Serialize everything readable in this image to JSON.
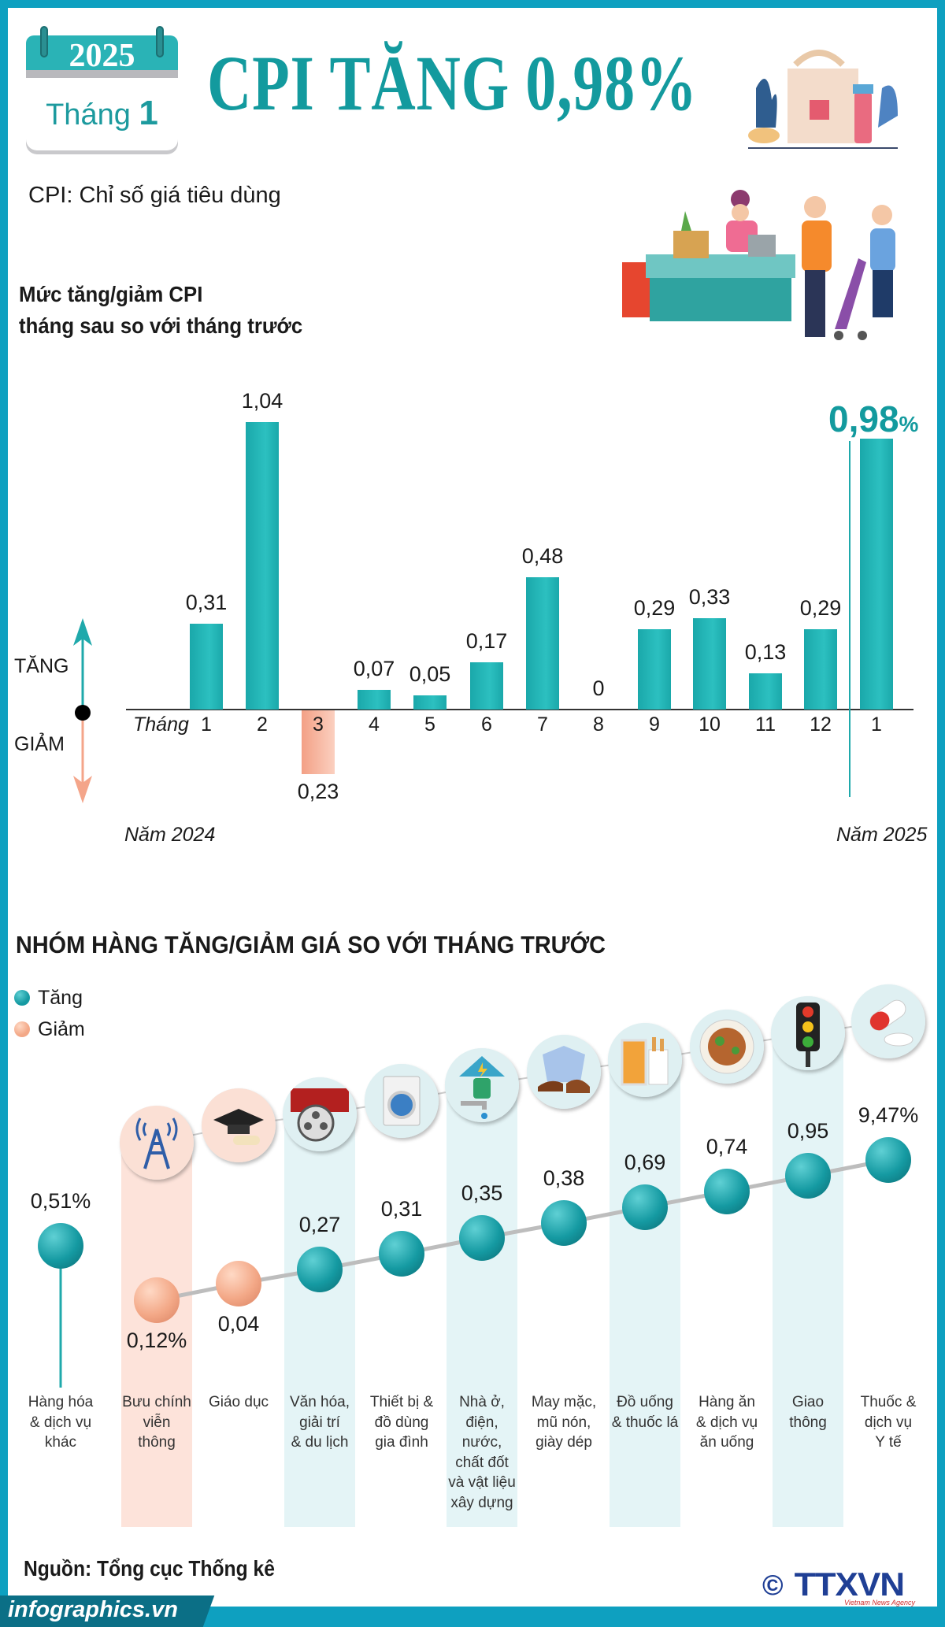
{
  "header": {
    "calendar_year": "2025",
    "calendar_month_label": "Tháng",
    "calendar_month": "1",
    "title": "CPI TĂNG 0,98%",
    "definition": "CPI: Chỉ số giá tiêu dùng"
  },
  "colors": {
    "teal": "#139a9e",
    "increase": "#1fb0b2",
    "decrease": "#f4a58a",
    "border": "#0ea0c0"
  },
  "chart_data": [
    {
      "type": "bar",
      "title": [
        "Mức tăng/giảm CPI",
        "tháng sau so với tháng trước"
      ],
      "axis_label": "Tháng",
      "up_label": "TĂNG",
      "down_label": "GIẢM",
      "categories": [
        "1",
        "2",
        "3",
        "4",
        "5",
        "6",
        "7",
        "8",
        "9",
        "10",
        "11",
        "12",
        "1"
      ],
      "values": [
        0.31,
        1.04,
        -0.23,
        0.07,
        0.05,
        0.17,
        0.48,
        0,
        0.29,
        0.33,
        0.13,
        0.29,
        0.98
      ],
      "value_labels": [
        "0,31",
        "1,04",
        "0,23",
        "0,07",
        "0,05",
        "0,17",
        "0,48",
        "0",
        "0,29",
        "0,33",
        "0,13",
        "0,29",
        "0,98"
      ],
      "highlight_suffix": "%",
      "year_labels": [
        "Năm 2024",
        "Năm 2025"
      ],
      "ylim": [
        -0.25,
        1.1
      ]
    },
    {
      "type": "scatter",
      "title": "NHÓM HÀNG TĂNG/GIẢM GIÁ SO VỚI THÁNG TRƯỚC",
      "legend": [
        {
          "label": "Tăng",
          "color": "#159aa2"
        },
        {
          "label": "Giảm",
          "color": "#f3a887"
        }
      ],
      "categories": [
        {
          "name": "Hàng hóa\n& dịch vụ\nkhác",
          "value": 0.51,
          "label": "0,51%",
          "direction": "up",
          "icon": "none"
        },
        {
          "name": "Bưu chính\nviễn\nthông",
          "value": -0.12,
          "label": "0,12%",
          "direction": "down",
          "icon": "cell-tower-icon"
        },
        {
          "name": "Giáo dục",
          "value": -0.04,
          "label": "0,04",
          "direction": "down",
          "icon": "graduation-cap-icon"
        },
        {
          "name": "Văn hóa,\ngiải trí\n& du lịch",
          "value": 0.27,
          "label": "0,27",
          "direction": "up",
          "icon": "film-reel-icon"
        },
        {
          "name": "Thiết bị &\nđồ dùng\ngia đình",
          "value": 0.31,
          "label": "0,31",
          "direction": "up",
          "icon": "washing-machine-icon"
        },
        {
          "name": "Nhà ở,\nđiện,\nnước,\nchất đốt\nvà vật liệu\nxây dựng",
          "value": 0.35,
          "label": "0,35",
          "direction": "up",
          "icon": "house-plug-icon"
        },
        {
          "name": "May mặc,\nmũ nón,\ngiày dép",
          "value": 0.38,
          "label": "0,38",
          "direction": "up",
          "icon": "shirt-shoe-icon"
        },
        {
          "name": "Đồ uống\n& thuốc lá",
          "value": 0.69,
          "label": "0,69",
          "direction": "up",
          "icon": "drink-cigarette-icon"
        },
        {
          "name": "Hàng ăn\n& dịch vụ\năn uống",
          "value": 0.74,
          "label": "0,74",
          "direction": "up",
          "icon": "food-bowl-icon"
        },
        {
          "name": "Giao\nthông",
          "value": 0.95,
          "label": "0,95",
          "direction": "up",
          "icon": "traffic-light-icon"
        },
        {
          "name": "Thuốc &\ndịch vụ\nY tế",
          "value": 9.47,
          "label": "9,47%",
          "direction": "up",
          "icon": "medicine-pill-icon"
        }
      ]
    }
  ],
  "footer": {
    "source": "Nguồn: Tổng cục Thống kê",
    "site": "infographics.vn",
    "logo": "TTXVN",
    "logo_sub": "Vietnam News Agency",
    "copyright": "©"
  }
}
